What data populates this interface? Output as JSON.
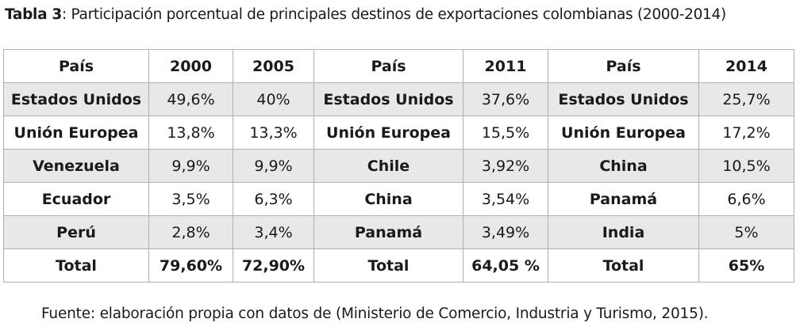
{
  "caption": {
    "label": "Tabla 3",
    "text": ": Participación porcentual de principales destinos de exportaciones colombianas (2000-2014)"
  },
  "headers": [
    "País",
    "2000",
    "2005",
    "País",
    "2011",
    "País",
    "2014"
  ],
  "rows": [
    [
      "Estados Unidos",
      "49,6%",
      "40%",
      "Estados Unidos",
      "37,6%",
      "Estados Unidos",
      "25,7%"
    ],
    [
      "Unión Europea",
      "13,8%",
      "13,3%",
      "Unión Europea",
      "15,5%",
      "Unión Europea",
      "17,2%"
    ],
    [
      "Venezuela",
      "9,9%",
      "9,9%",
      "Chile",
      "3,92%",
      "China",
      "10,5%"
    ],
    [
      "Ecuador",
      "3,5%",
      "6,3%",
      "China",
      "3,54%",
      "Panamá",
      "6,6%"
    ],
    [
      "Perú",
      "2,8%",
      "3,4%",
      "Panamá",
      "3,49%",
      "India",
      "5%"
    ],
    [
      "Total",
      "79,60%",
      "72,90%",
      "Total",
      "64,05 %",
      "Total",
      "65%"
    ]
  ],
  "source": "Fuente: elaboración propia con datos de (Ministerio de Comercio, Industria y Turismo, 2015)."
}
